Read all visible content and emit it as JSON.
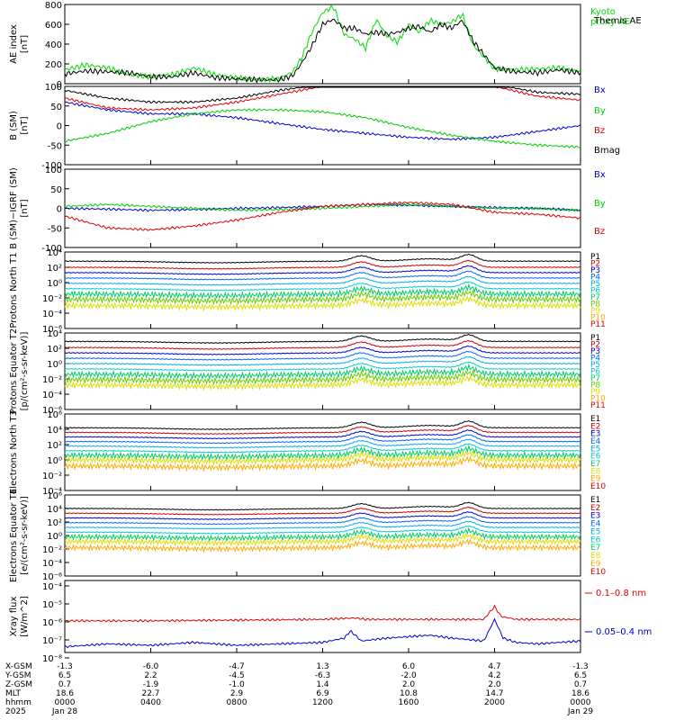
{
  "chart_data": [
    {
      "type": "line",
      "ylabel": "AE index [nT]",
      "ylim": [
        0,
        800
      ],
      "yticks": [
        0,
        200,
        400,
        600,
        800
      ],
      "legend_placement": "right",
      "series": [
        {
          "name": "Kyoto proxy AE",
          "color": "#00dd00",
          "x": [
            0,
            1,
            2,
            3,
            4,
            5,
            6,
            7,
            8,
            9,
            10,
            10.6,
            11,
            11.5,
            12,
            12.5,
            13,
            13.5,
            14,
            14.5,
            15,
            15.5,
            16,
            16.5,
            17,
            17.5,
            18,
            18.5,
            19,
            20,
            21,
            22,
            23,
            24
          ],
          "y": [
            140,
            190,
            160,
            90,
            70,
            90,
            160,
            90,
            60,
            40,
            50,
            120,
            250,
            520,
            720,
            780,
            500,
            450,
            360,
            650,
            480,
            420,
            600,
            520,
            640,
            600,
            620,
            700,
            390,
            150,
            140,
            150,
            160,
            120
          ]
        },
        {
          "name": "Themis AE",
          "color": "#000000",
          "x": [
            0,
            1,
            2,
            3,
            4,
            5,
            6,
            7,
            8,
            9,
            10,
            10.6,
            11,
            11.5,
            12,
            12.5,
            13,
            13.5,
            14,
            14.5,
            15,
            15.5,
            16,
            16.5,
            17,
            17.5,
            18,
            18.5,
            19,
            20,
            21,
            22,
            23,
            24
          ],
          "y": [
            100,
            130,
            120,
            110,
            70,
            70,
            110,
            60,
            50,
            40,
            40,
            80,
            200,
            380,
            600,
            650,
            560,
            560,
            500,
            520,
            500,
            520,
            560,
            580,
            520,
            600,
            560,
            640,
            430,
            160,
            120,
            110,
            140,
            110
          ]
        }
      ]
    },
    {
      "type": "line",
      "ylabel": "B (SM) [nT]",
      "ylim": [
        -100,
        100
      ],
      "yticks": [
        -100,
        -50,
        0,
        50,
        100
      ],
      "legend_placement": "right",
      "series": [
        {
          "name": "Bx",
          "color": "#0000cc",
          "x": [
            0,
            2,
            4,
            6,
            8,
            10,
            12,
            14,
            16,
            18,
            20,
            22,
            24
          ],
          "y": [
            60,
            40,
            30,
            30,
            20,
            5,
            -10,
            -20,
            -30,
            -35,
            -30,
            -15,
            0
          ]
        },
        {
          "name": "By",
          "color": "#00cc00",
          "x": [
            0,
            2,
            4,
            6,
            8,
            10,
            12,
            14,
            16,
            18,
            20,
            22,
            24
          ],
          "y": [
            -40,
            -20,
            10,
            30,
            40,
            40,
            35,
            20,
            -5,
            -25,
            -40,
            -50,
            -55
          ]
        },
        {
          "name": "Bz",
          "color": "#dd0000",
          "x": [
            0,
            2,
            4,
            6,
            8,
            10,
            12,
            14,
            16,
            18,
            20,
            22,
            24
          ],
          "y": [
            70,
            45,
            40,
            45,
            60,
            80,
            100,
            110,
            115,
            110,
            100,
            75,
            65
          ]
        },
        {
          "name": "Bmag",
          "color": "#000000",
          "x": [
            0,
            2,
            4,
            6,
            8,
            10,
            12,
            14,
            16,
            18,
            20,
            22,
            24
          ],
          "y": [
            90,
            70,
            60,
            60,
            70,
            90,
            105,
            115,
            120,
            115,
            105,
            85,
            80
          ]
        }
      ]
    },
    {
      "type": "line",
      "ylabel": "B (SM)−IGRF (SM) [nT]",
      "ylim": [
        -100,
        100
      ],
      "yticks": [
        -100,
        -50,
        0,
        50,
        100
      ],
      "legend_placement": "right",
      "series": [
        {
          "name": "Bx",
          "color": "#0000cc",
          "x": [
            0,
            2,
            4,
            6,
            8,
            10,
            12,
            14,
            16,
            18,
            20,
            22,
            24
          ],
          "y": [
            0,
            -2,
            -5,
            -3,
            0,
            2,
            5,
            10,
            8,
            5,
            2,
            0,
            -5
          ]
        },
        {
          "name": "By",
          "color": "#00cc00",
          "x": [
            0,
            2,
            4,
            6,
            8,
            10,
            12,
            14,
            16,
            18,
            20,
            22,
            24
          ],
          "y": [
            5,
            10,
            5,
            0,
            -5,
            -3,
            0,
            5,
            10,
            5,
            0,
            0,
            -5
          ]
        },
        {
          "name": "Bz",
          "color": "#dd0000",
          "x": [
            0,
            2,
            4,
            6,
            8,
            10,
            12,
            14,
            16,
            18,
            20,
            22,
            24
          ],
          "y": [
            -20,
            -50,
            -55,
            -45,
            -30,
            -10,
            5,
            10,
            15,
            10,
            -10,
            -15,
            -25
          ]
        }
      ]
    },
    {
      "type": "line",
      "ylabel": "Protons North T1",
      "yscale": "log",
      "ylim": [
        1e-06,
        10000.0
      ],
      "yticks": [
        "10⁴",
        "10²",
        "10⁰",
        "10⁻²",
        "10⁻⁴",
        "10⁻⁶"
      ],
      "legend": [
        "P1",
        "P2",
        "P3",
        "P4",
        "P5",
        "P6",
        "P7",
        "P8",
        "P9",
        "P10",
        "P11"
      ],
      "legend_placement": "right",
      "log10_levels": [
        2.8,
        2.0,
        1.3,
        0.6,
        -0.1,
        -0.8,
        -1.5,
        -2.2,
        -3.0
      ]
    },
    {
      "type": "line",
      "ylabel": "Protons Equator T2 [p/(cm²-s-sr-keV)]",
      "yscale": "log",
      "ylim": [
        1e-06,
        10000.0
      ],
      "yticks": [
        "10⁴",
        "10²",
        "10⁰",
        "10⁻²",
        "10⁻⁴",
        "10⁻⁶"
      ],
      "legend": [
        "P1",
        "P2",
        "P3",
        "P4",
        "P5",
        "P6",
        "P7",
        "P8",
        "P9",
        "P10",
        "P11"
      ],
      "legend_placement": "right",
      "log10_levels": [
        2.9,
        2.1,
        1.4,
        0.7,
        0.0,
        -0.7,
        -1.4,
        -2.1,
        -2.8
      ]
    },
    {
      "type": "line",
      "ylabel": "Electrons North T3",
      "yscale": "log",
      "ylim": [
        0.0001,
        1000000.0
      ],
      "yticks": [
        "10⁶",
        "10⁴",
        "10²",
        "10⁰",
        "10⁻²",
        "10⁻⁴"
      ],
      "legend": [
        "E1",
        "E2",
        "E3",
        "E4",
        "E5",
        "E6",
        "E7",
        "E8",
        "E9",
        "E10"
      ],
      "legend_placement": "right",
      "log10_levels": [
        4.2,
        3.6,
        3.0,
        2.4,
        1.8,
        1.2,
        0.6,
        0.0,
        -0.8
      ]
    },
    {
      "type": "line",
      "ylabel": "Electrons Equator T4 [e/(cm²-s-sr-keV)]",
      "yscale": "log",
      "ylim": [
        1e-06,
        1000000.0
      ],
      "yticks": [
        "10⁶",
        "10⁴",
        "10²",
        "10⁰",
        "10⁻²",
        "10⁻⁴",
        "10⁻⁶"
      ],
      "legend": [
        "E1",
        "E2",
        "E3",
        "E4",
        "E5",
        "E6",
        "E7",
        "E8",
        "E9",
        "E10"
      ],
      "legend_placement": "right",
      "log10_levels": [
        4.0,
        3.3,
        2.6,
        1.9,
        1.2,
        0.5,
        -0.2,
        -0.9,
        -1.8
      ]
    },
    {
      "type": "line",
      "ylabel": "Xray flux [W/m^2]",
      "yscale": "log",
      "ylim": [
        1e-09,
        0.0001
      ],
      "yticks": [
        "10⁻⁴",
        "10⁻⁵",
        "10⁻⁶",
        "10⁻⁷",
        "10⁻⁸"
      ],
      "legend_placement": "right",
      "series": [
        {
          "name": "0.1–0.8 nm",
          "color": "#dd0000",
          "x": [
            0,
            4,
            8,
            12,
            13.5,
            14,
            16,
            19.5,
            20,
            20.3,
            21,
            24
          ],
          "log10_y": [
            -6.8,
            -6.8,
            -6.75,
            -6.7,
            -6.6,
            -6.7,
            -6.7,
            -6.7,
            -5.8,
            -6.5,
            -6.7,
            -6.7
          ]
        },
        {
          "name": "0.05–0.4 nm",
          "color": "#0000cc",
          "x": [
            0,
            2,
            4,
            6,
            8,
            10,
            12,
            13,
            13.3,
            13.8,
            15,
            17,
            18,
            19.5,
            20,
            20.4,
            21,
            22,
            24
          ],
          "log10_y": [
            -8.6,
            -8.4,
            -8.5,
            -8.3,
            -8.5,
            -8.4,
            -8.3,
            -8.0,
            -7.5,
            -8.2,
            -8.0,
            -7.8,
            -8.0,
            -8.2,
            -6.7,
            -8.0,
            -8.3,
            -8.4,
            -8.2
          ]
        }
      ]
    }
  ],
  "ephemeris": {
    "rows": [
      {
        "label": "X-GSM",
        "values": [
          "-1.3",
          "-6.0",
          "-4.7",
          "1.3",
          "6.0",
          "4.7",
          "-1.3"
        ]
      },
      {
        "label": "Y-GSM",
        "values": [
          "6.5",
          "2.2",
          "-4.5",
          "-6.3",
          "-2.0",
          "4.2",
          "6.5"
        ]
      },
      {
        "label": "Z-GSM",
        "values": [
          "0.7",
          "-1.9",
          "-1.0",
          "1.4",
          "2.0",
          "2.0",
          "0.7"
        ]
      },
      {
        "label": "MLT",
        "values": [
          "18.6",
          "22.7",
          "2.9",
          "6.9",
          "10.8",
          "14.7",
          "18.6"
        ]
      },
      {
        "label": "hhmm",
        "values": [
          "0000",
          "0400",
          "0800",
          "1200",
          "1600",
          "2000",
          "0000"
        ]
      },
      {
        "label": "2025",
        "values": [
          "Jan 28",
          "",
          "",
          "",
          "",
          "",
          "Jan 29"
        ]
      }
    ]
  }
}
